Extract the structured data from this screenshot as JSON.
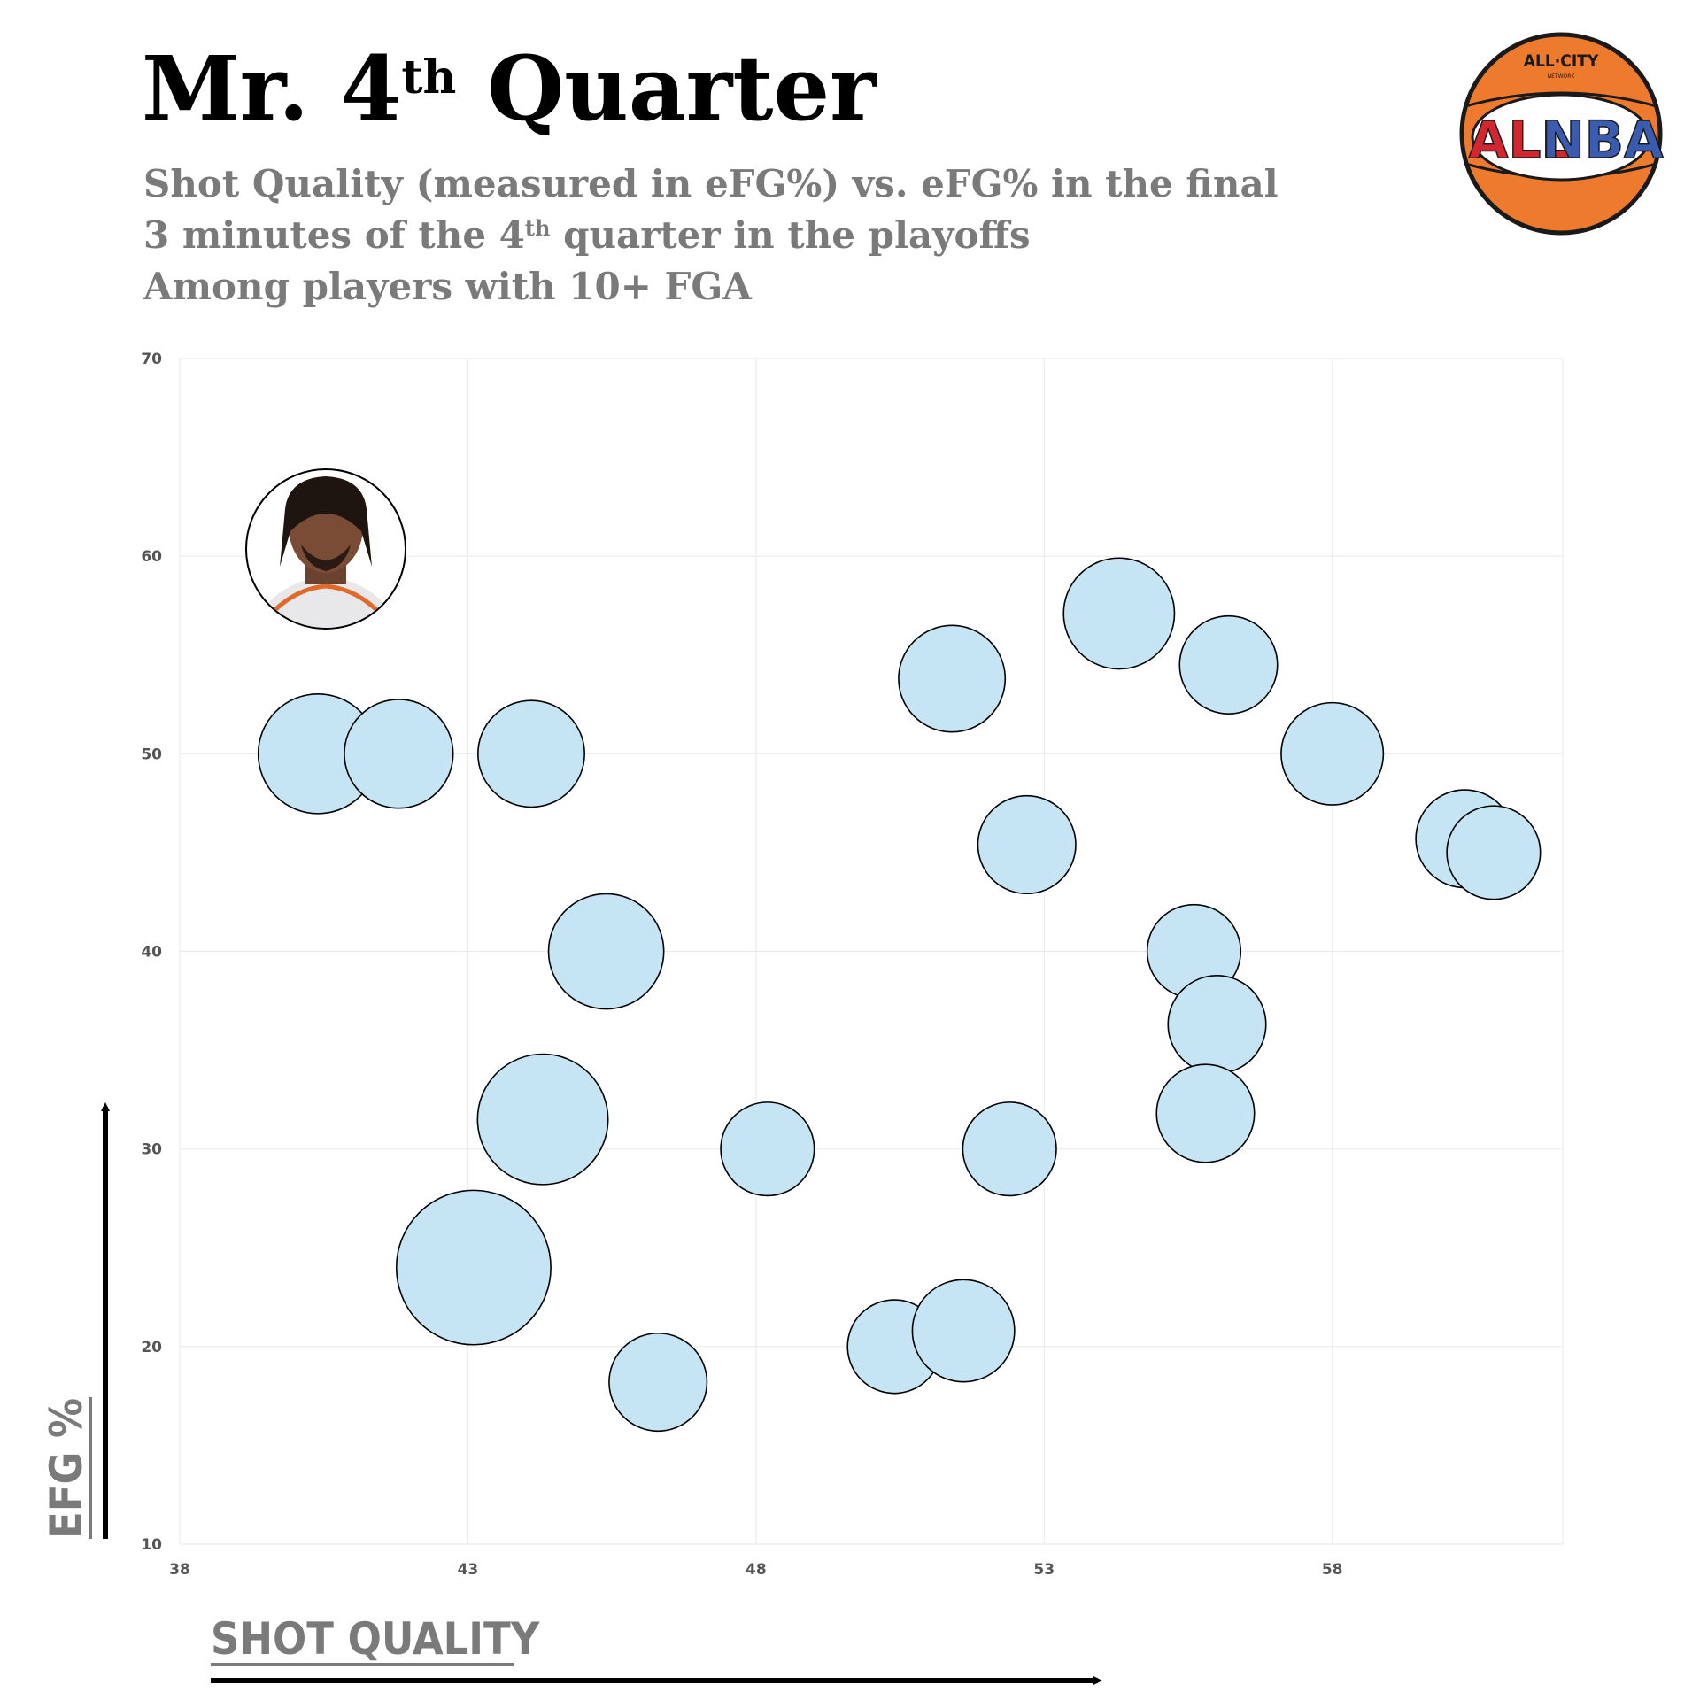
{
  "chart_data": {
    "type": "bubble",
    "title": [
      "Mr. 4",
      "th",
      " Quarter"
    ],
    "subtitle": [
      [
        "Shot Quality (measured in eFG%) vs. eFG% in the final"
      ],
      [
        "3 minutes of the 4",
        "th",
        " quarter in the playoffs"
      ],
      [
        "Among players with 10+ FGA"
      ]
    ],
    "x_label": "SHOT QUALITY",
    "y_label": "EFG %",
    "logo": {
      "top": "ALL·CITY",
      "sub": "NETWORK",
      "left": "ALL",
      "right": "NBA"
    },
    "xlim": [
      38,
      62
    ],
    "xticks": [
      38,
      43,
      48,
      53,
      58
    ],
    "ylim": [
      10,
      70
    ],
    "yticks": [
      10,
      20,
      30,
      40,
      50,
      60,
      70
    ],
    "grid": true,
    "color": "#c5e5f5",
    "x": [
      40.4,
      41.8,
      44.1,
      45.4,
      44.3,
      43.1,
      46.3,
      48.2,
      50.4,
      51.6,
      52.4,
      51.4,
      52.7,
      54.3,
      56.2,
      58.0,
      60.3,
      60.8,
      55.6,
      56.0,
      55.8
    ],
    "y": [
      50,
      50,
      50,
      40,
      31.5,
      24.0,
      18.2,
      30,
      20,
      20.8,
      30,
      53.8,
      45.4,
      57.1,
      54.5,
      50,
      45.7,
      45.0,
      40,
      36.3,
      31.8
    ],
    "sizes": [
      55,
      50,
      49,
      53,
      60,
      71,
      45,
      43,
      43,
      47,
      43,
      49,
      45,
      51,
      45,
      47,
      45,
      43,
      43,
      45,
      45
    ]
  }
}
